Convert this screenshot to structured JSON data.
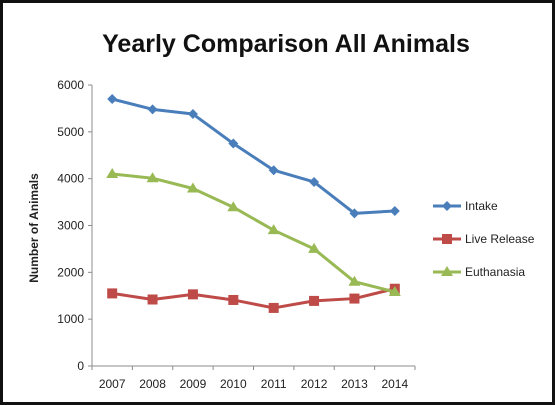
{
  "chart_data": {
    "type": "line",
    "title": "Yearly Comparison All Animals",
    "xlabel": "",
    "ylabel": "Number of Animals",
    "categories": [
      "2007",
      "2008",
      "2009",
      "2010",
      "2011",
      "2012",
      "2013",
      "2014"
    ],
    "ylim": [
      0,
      6000
    ],
    "yticks": [
      "0",
      "1000",
      "2000",
      "3000",
      "4000",
      "5000",
      "6000"
    ],
    "grid": false,
    "legend_position": "right",
    "series": [
      {
        "name": "Intake",
        "color": "#4a7ebb",
        "marker": "diamond",
        "values": [
          5700,
          5480,
          5380,
          4750,
          4180,
          3930,
          3260,
          3310
        ]
      },
      {
        "name": "Live Release",
        "color": "#be4b48",
        "marker": "square",
        "values": [
          1550,
          1420,
          1530,
          1410,
          1240,
          1390,
          1440,
          1650
        ]
      },
      {
        "name": "Euthanasia",
        "color": "#98b954",
        "marker": "triangle",
        "values": [
          4100,
          4010,
          3790,
          3390,
          2900,
          2500,
          1800,
          1580
        ]
      }
    ]
  }
}
